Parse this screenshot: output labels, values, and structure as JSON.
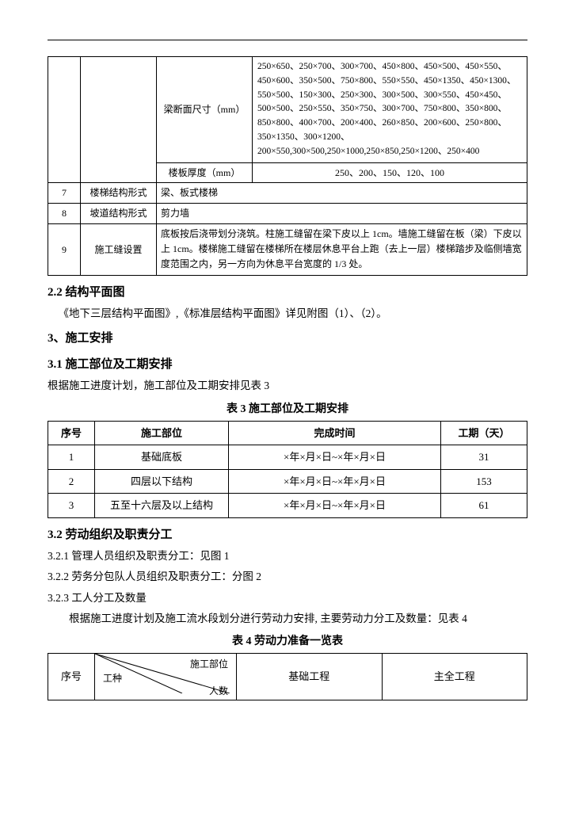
{
  "table1": {
    "beam_label": "梁断面尺寸（mm）",
    "beam_dims": "250×650、250×700、300×700、450×800、450×500、450×550、450×600、350×500、750×800、550×550、450×1350、450×1300、550×500、150×300、250×300、300×500、300×550、450×450、500×500、250×550、350×750、300×700、750×800、350×800、850×800、400×700、200×400、260×850、200×600、250×800、350×1350、300×1200、200×550,300×500,250×1000,250×850,250×1200、250×400",
    "slab_label": "楼板厚度（mm）",
    "slab_vals": "250、200、150、120、100",
    "r7_no": "7",
    "r7_a": "楼梯结构形式",
    "r7_b": "梁、板式楼梯",
    "r8_no": "8",
    "r8_a": "坡道结构形式",
    "r8_b": "剪力墙",
    "r9_no": "9",
    "r9_a": "施工缝设置",
    "r9_b": "底板按后浇带划分浇筑。柱施工缝留在梁下皮以上 1cm。墙施工缝留在板（梁）下皮以上 1cm。楼梯施工缝留在楼梯所在楼层休息平台上跑（去上一层）楼梯踏步及临侧墙宽度范围之内，另一方向为休息平台宽度的 1/3 处。"
  },
  "sec22_title": "2.2 结构平面图",
  "sec22_body": "《地下三层结构平面图》,《标准层结构平面图》详见附图（1）、（2）。",
  "sec3_title": "3、施工安排",
  "sec31_title": "3.1 施工部位及工期安排",
  "sec31_body": "根据施工进度计划，施工部位及工期安排见表 3",
  "table3_caption": "表 3  施工部位及工期安排",
  "table3": {
    "headers": [
      "序号",
      "施工部位",
      "完成时间",
      "工期（天）"
    ],
    "rows": [
      [
        "1",
        "基础底板",
        "×年×月×日~×年×月×日",
        "31"
      ],
      [
        "2",
        "四层以下结构",
        "×年×月×日~×年×月×日",
        "153"
      ],
      [
        "3",
        "五至十六层及以上结构",
        "×年×月×日~×年×月×日",
        "61"
      ]
    ]
  },
  "sec32_title": "3.2 劳动组织及职责分工",
  "sec321": "3.2.1 管理人员组织及职责分工：见图 1",
  "sec322": "3.2.2 劳务分包队人员组织及职责分工：分图 2",
  "sec323": "3.2.3 工人分工及数量",
  "sec323_body": "根据施工进度计划及施工流水段划分进行劳动力安排, 主要劳动力分工及数量：见表 4",
  "table4_caption": "表 4  劳动力准备一览表",
  "table4": {
    "h_no": "序号",
    "diag_top": "施工部位",
    "diag_left": "工种",
    "diag_bot": "人数",
    "col2": "基础工程",
    "col3": "主全工程"
  }
}
